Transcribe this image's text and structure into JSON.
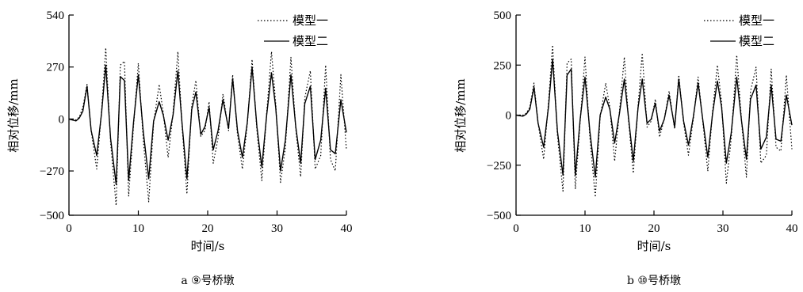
{
  "chart_data": [
    {
      "type": "line",
      "caption": "a ⑨号桥墩",
      "xlabel": "时间/s",
      "ylabel": "相对位移/mm",
      "xlim": [
        0,
        40
      ],
      "ylim": [
        -500,
        540
      ],
      "xticks": [
        0,
        10,
        20,
        30,
        40
      ],
      "yticks": [
        -500,
        -270,
        0,
        270,
        540
      ],
      "xtick_labels": [
        "0",
        "10",
        "20",
        "30",
        "40"
      ],
      "ytick_labels": [
        "−500",
        "−270",
        "0",
        "270",
        "540"
      ],
      "grid": false,
      "legend_position": "top-right",
      "series": [
        {
          "name": "模型一",
          "style": "dotted",
          "color": "#000000",
          "x": [
            0,
            1,
            1.5,
            2,
            2.6,
            3.2,
            4,
            4.7,
            5.3,
            6,
            6.8,
            7.4,
            8,
            8.6,
            9.3,
            10,
            10.7,
            11.5,
            12.2,
            13,
            13.6,
            14.3,
            15,
            15.7,
            16.3,
            17,
            17.7,
            18.3,
            19,
            19.6,
            20.2,
            20.8,
            21.5,
            22.2,
            23,
            23.6,
            24.3,
            25,
            25.7,
            26.4,
            27.1,
            27.8,
            28.5,
            29.2,
            29.8,
            30.5,
            31.2,
            32,
            32.7,
            33.4,
            34,
            34.8,
            35.5,
            36.3,
            37,
            37.7,
            38.4,
            39.2,
            40
          ],
          "y": [
            0,
            -5,
            10,
            60,
            180,
            -60,
            -260,
            40,
            370,
            -120,
            -450,
            280,
            300,
            -400,
            -40,
            290,
            -100,
            -430,
            -20,
            180,
            30,
            -200,
            30,
            350,
            -30,
            -390,
            70,
            200,
            -90,
            -60,
            90,
            -230,
            -100,
            130,
            -60,
            230,
            -80,
            -260,
            -30,
            310,
            -60,
            -320,
            30,
            350,
            80,
            -330,
            -150,
            320,
            -50,
            -300,
            110,
            250,
            -260,
            -190,
            280,
            -210,
            -270,
            230,
            -160
          ]
        },
        {
          "name": "模型二",
          "style": "solid",
          "color": "#000000",
          "x": [
            0,
            1,
            1.5,
            2,
            2.6,
            3.2,
            4,
            4.7,
            5.3,
            6,
            6.8,
            7.4,
            8,
            8.6,
            9.3,
            10,
            10.7,
            11.5,
            12.2,
            13,
            13.6,
            14.3,
            15,
            15.7,
            16.3,
            17,
            17.7,
            18.3,
            19,
            19.6,
            20.2,
            20.8,
            21.5,
            22.2,
            23,
            23.6,
            24.3,
            25,
            25.7,
            26.4,
            27.1,
            27.8,
            28.5,
            29.2,
            29.8,
            30.5,
            31.2,
            32,
            32.7,
            33.4,
            34,
            34.8,
            35.5,
            36.3,
            37,
            37.7,
            38.4,
            39.2,
            40
          ],
          "y": [
            0,
            -10,
            5,
            40,
            170,
            -60,
            -190,
            30,
            280,
            -100,
            -340,
            220,
            200,
            -320,
            -20,
            230,
            -60,
            -310,
            -10,
            90,
            20,
            -110,
            20,
            250,
            -20,
            -310,
            50,
            140,
            -80,
            -40,
            60,
            -160,
            -60,
            100,
            -50,
            210,
            -60,
            -200,
            -20,
            270,
            -40,
            -250,
            20,
            240,
            60,
            -270,
            -110,
            230,
            -40,
            -230,
            80,
            170,
            -210,
            -110,
            160,
            -160,
            -180,
            100,
            -70
          ]
        }
      ]
    },
    {
      "type": "line",
      "caption": "b ⑩号桥墩",
      "xlabel": "时间/s",
      "ylabel": "相对位移/mm",
      "xlim": [
        0,
        40
      ],
      "ylim": [
        -500,
        500
      ],
      "xticks": [
        0,
        10,
        20,
        30,
        40
      ],
      "yticks": [
        -500,
        -250,
        0,
        250,
        500
      ],
      "xtick_labels": [
        "0",
        "10",
        "20",
        "30",
        "40"
      ],
      "ytick_labels": [
        "−500",
        "−250",
        "0",
        "250",
        "500"
      ],
      "grid": false,
      "legend_position": "top-right",
      "series": [
        {
          "name": "模型一",
          "style": "dotted",
          "color": "#000000",
          "x": [
            0,
            1,
            1.5,
            2,
            2.6,
            3.2,
            4,
            4.7,
            5.3,
            6,
            6.8,
            7.4,
            8,
            8.6,
            9.3,
            10,
            10.7,
            11.5,
            12.2,
            13,
            13.6,
            14.3,
            15,
            15.7,
            16.3,
            17,
            17.7,
            18.3,
            19,
            19.6,
            20.2,
            20.8,
            21.5,
            22.2,
            23,
            23.6,
            24.3,
            25,
            25.7,
            26.4,
            27.1,
            27.8,
            28.5,
            29.2,
            29.8,
            30.5,
            31.2,
            32,
            32.7,
            33.4,
            34,
            34.8,
            35.5,
            36.3,
            37,
            37.7,
            38.4,
            39.2,
            40
          ],
          "y": [
            0,
            0,
            10,
            40,
            160,
            -40,
            -220,
            60,
            350,
            -100,
            -380,
            260,
            280,
            -370,
            -30,
            290,
            -110,
            -410,
            -10,
            160,
            40,
            -230,
            20,
            290,
            -20,
            -290,
            50,
            310,
            -60,
            -30,
            80,
            -110,
            -20,
            120,
            -70,
            200,
            -40,
            -200,
            -20,
            190,
            -40,
            -280,
            20,
            250,
            60,
            -340,
            -120,
            300,
            -30,
            -310,
            120,
            240,
            -240,
            -200,
            230,
            -160,
            -180,
            200,
            -170
          ]
        },
        {
          "name": "模型二",
          "style": "solid",
          "color": "#000000",
          "x": [
            0,
            1,
            1.5,
            2,
            2.6,
            3.2,
            4,
            4.7,
            5.3,
            6,
            6.8,
            7.4,
            8,
            8.6,
            9.3,
            10,
            10.7,
            11.5,
            12.2,
            13,
            13.6,
            14.3,
            15,
            15.7,
            16.3,
            17,
            17.7,
            18.3,
            19,
            19.6,
            20.2,
            20.8,
            21.5,
            22.2,
            23,
            23.6,
            24.3,
            25,
            25.7,
            26.4,
            27.1,
            27.8,
            28.5,
            29.2,
            29.8,
            30.5,
            31.2,
            32,
            32.7,
            33.4,
            34,
            34.8,
            35.5,
            36.3,
            37,
            37.7,
            38.4,
            39.2,
            40
          ],
          "y": [
            0,
            -5,
            5,
            30,
            140,
            -40,
            -160,
            40,
            280,
            -80,
            -300,
            200,
            230,
            -300,
            -20,
            190,
            -80,
            -310,
            0,
            90,
            30,
            -140,
            10,
            180,
            -10,
            -230,
            40,
            180,
            -40,
            -20,
            60,
            -80,
            -20,
            100,
            -60,
            180,
            -30,
            -150,
            -10,
            160,
            -30,
            -210,
            10,
            170,
            40,
            -240,
            -90,
            190,
            -30,
            -220,
            80,
            150,
            -170,
            -110,
            150,
            -120,
            -130,
            100,
            -50
          ]
        }
      ]
    }
  ]
}
